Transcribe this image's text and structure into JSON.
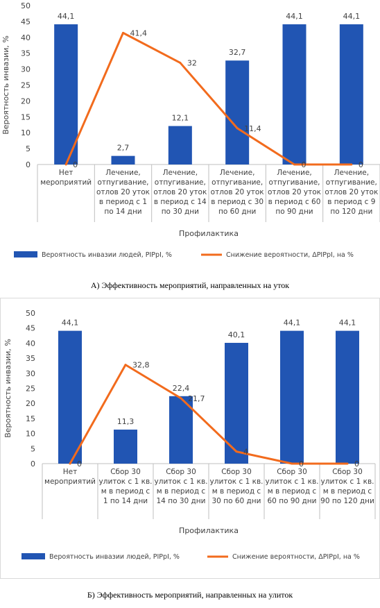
{
  "chart_data": [
    {
      "type": "bar",
      "ylabel": "Вероятность инвазии, %",
      "xlabel": "Профилактика",
      "ylim": [
        0,
        50
      ],
      "yticks": [
        "0",
        "5",
        "10",
        "15",
        "20",
        "25",
        "30",
        "35",
        "40",
        "45",
        "50"
      ],
      "grid": false,
      "legend_position": "bottom",
      "categories": [
        [
          "Нет",
          "мероприятий"
        ],
        [
          "Лечение,",
          "отпугивание,",
          "отлов 20 уток",
          "в период с 1",
          "по 14 дни"
        ],
        [
          "Лечение,",
          "отпугивание,",
          "отлов 20 уток",
          "в период с 14",
          "по 30 дни"
        ],
        [
          "Лечение,",
          "отпугивание,",
          "отлов 20 уток",
          "в период с 30",
          "по 60 дни"
        ],
        [
          "Лечение,",
          "отпугивание,",
          "отлов 20 уток",
          "в период с 60",
          "по 90 дни"
        ],
        [
          "Лечение,",
          "отпугивание,",
          "отлов 20 уток",
          "в период с 9",
          "по 120 дни"
        ]
      ],
      "series": [
        {
          "name": "Вероятность инвазии людей, PIPpI, %",
          "kind": "bar",
          "color": "#2155b3",
          "values": [
            44.1,
            2.7,
            12.1,
            32.7,
            44.1,
            44.1
          ],
          "labels": [
            "44,1",
            "2,7",
            "12,1",
            "32,7",
            "44,1",
            "44,1"
          ]
        },
        {
          "name": "Снижение вероятности, ΔPIPpI, на %",
          "kind": "line",
          "color": "#f26b1d",
          "values": [
            0,
            41.4,
            32,
            11.4,
            0,
            0
          ],
          "labels": [
            "0",
            "41,4",
            "32",
            "11,4",
            "0",
            "0"
          ]
        }
      ]
    },
    {
      "type": "bar",
      "ylabel": "Вероятность инвазии, %",
      "xlabel": "Профилактика",
      "ylim": [
        0,
        50
      ],
      "yticks": [
        "0",
        "5",
        "10",
        "15",
        "20",
        "25",
        "30",
        "35",
        "40",
        "45",
        "50"
      ],
      "grid": false,
      "legend_position": "bottom",
      "categories": [
        [
          "Нет",
          "мероприятий"
        ],
        [
          "Сбор 30",
          "улиток с 1 кв.",
          "м в период с",
          "1 по 14 дни"
        ],
        [
          "Сбор 30",
          "улиток с 1 кв.",
          "м в период с",
          "14 по 30 дни"
        ],
        [
          "Сбор 30",
          "улиток с 1 кв.",
          "м в период с",
          "30 по 60 дни"
        ],
        [
          "Сбор 30",
          "улиток с 1 кв.",
          "м в период с",
          "60 по 90 дни"
        ],
        [
          "Сбор 30",
          "улиток с 1 кв.",
          "м в период с",
          "90 по 120 дни"
        ]
      ],
      "series": [
        {
          "name": "Вероятность инвазии людей, PIPpI, %",
          "kind": "bar",
          "color": "#2155b3",
          "values": [
            44.1,
            11.3,
            22.4,
            40.1,
            44.1,
            44.1
          ],
          "labels": [
            "44,1",
            "11,3",
            "22,4",
            "40,1",
            "44,1",
            "44,1"
          ]
        },
        {
          "name": "Снижение вероятности, ΔPIPpI, на %",
          "kind": "line",
          "color": "#f26b1d",
          "values": [
            0,
            32.8,
            21.7,
            4,
            0,
            0
          ],
          "labels": [
            "0",
            "32,8",
            "21,7",
            "4",
            "0",
            "0"
          ]
        }
      ]
    }
  ],
  "captions": {
    "a": "А) Эффективность мероприятий, направленных на уток",
    "b": "Б) Эффективность мероприятий, направленных на улиток"
  }
}
